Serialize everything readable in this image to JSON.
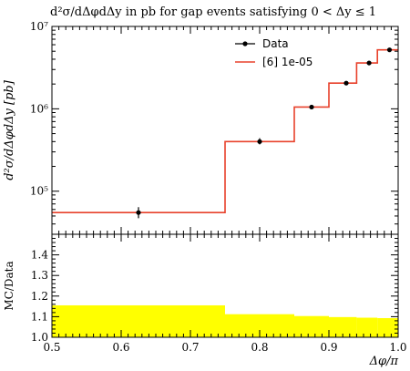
{
  "title": "d²σ/dΔφdΔy in pb for gap events satisfying 0 < Δy ≤ 1",
  "chart_data": [
    {
      "type": "line",
      "panel": "main",
      "ylabel": "d²σ/dΔφdΔy [pb]",
      "yscale": "log",
      "ylim": [
        30000,
        10000000
      ],
      "xlim": [
        0.5,
        1.0
      ],
      "yticks": [
        {
          "label": "10⁵",
          "value": 100000
        },
        {
          "label": "10⁶",
          "value": 1000000
        },
        {
          "label": "10⁷",
          "value": 10000000
        }
      ],
      "legend": {
        "placement": "top-right"
      },
      "series": [
        {
          "name": "Data",
          "style": "markers-with-errorbars",
          "color": "#000000",
          "points": [
            {
              "x": 0.625,
              "y": 55000,
              "yerr": [
                47000,
                64000
              ]
            },
            {
              "x": 0.8,
              "y": 400000,
              "yerr": [
                370000,
                440000
              ]
            },
            {
              "x": 0.875,
              "y": 1050000,
              "yerr": [
                990000,
                1110000
              ]
            },
            {
              "x": 0.925,
              "y": 2050000,
              "yerr": [
                1960000,
                2150000
              ]
            },
            {
              "x": 0.958,
              "y": 3600000,
              "yerr": [
                3450000,
                3750000
              ]
            },
            {
              "x": 0.9875,
              "y": 5200000,
              "yerr": [
                5000000,
                5400000
              ]
            }
          ]
        },
        {
          "name": "[6] 1e-05",
          "style": "step-histogram",
          "color": "#e8412b",
          "bins": [
            {
              "x0": 0.5,
              "x1": 0.75,
              "y": 55000
            },
            {
              "x0": 0.75,
              "x1": 0.85,
              "y": 400000
            },
            {
              "x0": 0.85,
              "x1": 0.9,
              "y": 1050000
            },
            {
              "x0": 0.9,
              "x1": 0.94,
              "y": 2050000
            },
            {
              "x0": 0.94,
              "x1": 0.97,
              "y": 3600000
            },
            {
              "x0": 0.97,
              "x1": 1.0,
              "y": 5200000
            }
          ]
        }
      ]
    },
    {
      "type": "area",
      "panel": "ratio",
      "ylabel": "MC/Data",
      "xlabel": "Δφ/π",
      "xlim": [
        0.5,
        1.0
      ],
      "ylim": [
        1.0,
        1.5
      ],
      "xticks": [
        0.5,
        0.6,
        0.7,
        0.8,
        0.9,
        1.0
      ],
      "yticks": [
        1.0,
        1.1,
        1.2,
        1.3,
        1.4
      ],
      "band_color": "#ffff00",
      "band": [
        {
          "x0": 0.5,
          "x1": 0.75,
          "lo": 1.0,
          "hi": 1.155
        },
        {
          "x0": 0.75,
          "x1": 0.85,
          "lo": 1.0,
          "hi": 1.112
        },
        {
          "x0": 0.85,
          "x1": 0.9,
          "lo": 1.0,
          "hi": 1.103
        },
        {
          "x0": 0.9,
          "x1": 0.94,
          "lo": 1.0,
          "hi": 1.098
        },
        {
          "x0": 0.94,
          "x1": 0.97,
          "lo": 1.0,
          "hi": 1.095
        },
        {
          "x0": 0.97,
          "x1": 1.0,
          "lo": 1.0,
          "hi": 1.093
        }
      ]
    }
  ]
}
